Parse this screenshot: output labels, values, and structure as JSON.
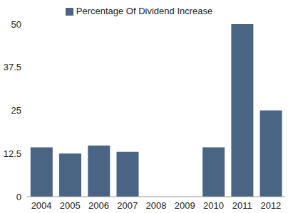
{
  "chart_data": {
    "type": "bar",
    "categories": [
      "2004",
      "2005",
      "2006",
      "2007",
      "2008",
      "2009",
      "2010",
      "2011",
      "2012"
    ],
    "series": [
      {
        "name": "Percentage Of Dividend Increase",
        "color": "#4a6484",
        "values": [
          14.3,
          12.5,
          14.8,
          13.0,
          0,
          0,
          14.3,
          50,
          25
        ]
      }
    ],
    "ylim": [
      0,
      50
    ],
    "yticks": [
      0,
      12.5,
      25,
      37.5,
      50
    ],
    "grid": false,
    "legend": "top"
  }
}
